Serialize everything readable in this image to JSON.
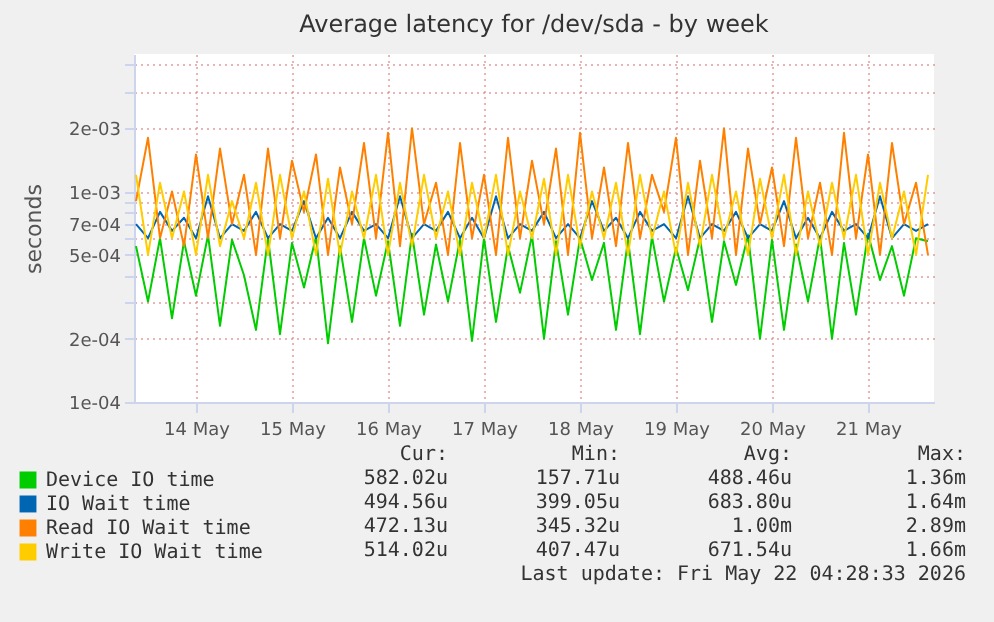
{
  "chart_data": {
    "type": "line",
    "title": "Average latency for /dev/sda - by week",
    "ylabel": "seconds",
    "log": "y",
    "ylim": [
      0.0001,
      0.0045
    ],
    "yticks": [
      {
        "value": 0.0001,
        "label": "1e-04"
      },
      {
        "value": 0.0002,
        "label": "2e-04"
      },
      {
        "value": 0.0003,
        "label": null
      },
      {
        "value": 0.0004,
        "label": null
      },
      {
        "value": 0.0005,
        "label": "5e-04"
      },
      {
        "value": 0.0006,
        "label": null
      },
      {
        "value": 0.0007,
        "label": "7e-04"
      },
      {
        "value": 0.0008,
        "label": null
      },
      {
        "value": 0.0009,
        "label": null
      },
      {
        "value": 0.001,
        "label": "1e-03"
      },
      {
        "value": 0.002,
        "label": "2e-03"
      },
      {
        "value": 0.003,
        "label": null
      },
      {
        "value": 0.004,
        "label": null
      }
    ],
    "xlim": [
      "2026-05-13T20:30",
      "2026-05-22T04:30"
    ],
    "xticks": [
      {
        "value": "2026-05-14T12:00",
        "label": "14 May"
      },
      {
        "value": "2026-05-15T12:00",
        "label": "15 May"
      },
      {
        "value": "2026-05-16T12:00",
        "label": "16 May"
      },
      {
        "value": "2026-05-17T12:00",
        "label": "17 May"
      },
      {
        "value": "2026-05-18T12:00",
        "label": "18 May"
      },
      {
        "value": "2026-05-19T12:00",
        "label": "19 May"
      },
      {
        "value": "2026-05-20T12:00",
        "label": "20 May"
      },
      {
        "value": "2026-05-21T12:00",
        "label": "21 May"
      }
    ],
    "grid": true,
    "legend": "bottom",
    "marker": "none",
    "line_style": "solid",
    "x": [
      "2026-05-13T21:00",
      "2026-05-14T00:00",
      "2026-05-14T03:00",
      "2026-05-14T06:00",
      "2026-05-14T09:00",
      "2026-05-14T12:00",
      "2026-05-14T15:00",
      "2026-05-14T18:00",
      "2026-05-14T21:00",
      "2026-05-15T00:00",
      "2026-05-15T03:00",
      "2026-05-15T06:00",
      "2026-05-15T09:00",
      "2026-05-15T12:00",
      "2026-05-15T15:00",
      "2026-05-15T18:00",
      "2026-05-15T21:00",
      "2026-05-16T00:00",
      "2026-05-16T03:00",
      "2026-05-16T06:00",
      "2026-05-16T09:00",
      "2026-05-16T12:00",
      "2026-05-16T15:00",
      "2026-05-16T18:00",
      "2026-05-16T21:00",
      "2026-05-17T00:00",
      "2026-05-17T03:00",
      "2026-05-17T06:00",
      "2026-05-17T09:00",
      "2026-05-17T12:00",
      "2026-05-17T15:00",
      "2026-05-17T18:00",
      "2026-05-17T21:00",
      "2026-05-18T00:00",
      "2026-05-18T03:00",
      "2026-05-18T06:00",
      "2026-05-18T09:00",
      "2026-05-18T12:00",
      "2026-05-18T15:00",
      "2026-05-18T18:00",
      "2026-05-18T21:00",
      "2026-05-19T00:00",
      "2026-05-19T03:00",
      "2026-05-19T06:00",
      "2026-05-19T09:00",
      "2026-05-19T12:00",
      "2026-05-19T15:00",
      "2026-05-19T18:00",
      "2026-05-19T21:00",
      "2026-05-20T00:00",
      "2026-05-20T03:00",
      "2026-05-20T06:00",
      "2026-05-20T09:00",
      "2026-05-20T12:00",
      "2026-05-20T15:00",
      "2026-05-20T18:00",
      "2026-05-20T21:00",
      "2026-05-21T00:00",
      "2026-05-21T03:00",
      "2026-05-21T06:00",
      "2026-05-21T09:00",
      "2026-05-21T12:00",
      "2026-05-21T15:00",
      "2026-05-21T18:00",
      "2026-05-21T21:00",
      "2026-05-22T00:00",
      "2026-05-22T03:00"
    ],
    "series": [
      {
        "name": "Device IO time",
        "color": "#00cc00",
        "values": [
          0.00055,
          0.0003,
          0.0006,
          0.00025,
          0.00058,
          0.00032,
          0.00062,
          0.00023,
          0.00059,
          0.0004,
          0.00022,
          0.0006,
          0.00021,
          0.00057,
          0.00035,
          0.00061,
          0.00019,
          0.00055,
          0.00024,
          0.0006,
          0.00032,
          0.00058,
          0.00023,
          0.00063,
          0.00026,
          0.00056,
          0.0003,
          0.00059,
          0.000195,
          0.0006,
          0.00024,
          0.00055,
          0.00033,
          0.00062,
          0.0002,
          0.00058,
          0.00026,
          0.0006,
          0.00038,
          0.00057,
          0.00022,
          0.00059,
          0.00021,
          0.00061,
          0.0003,
          0.00054,
          0.00034,
          0.0006,
          0.00024,
          0.00058,
          0.00036,
          0.00062,
          0.0002,
          0.00059,
          0.00022,
          0.00056,
          0.0003,
          0.00061,
          0.0002,
          0.00057,
          0.00026,
          0.00063,
          0.00038,
          0.00055,
          0.00032,
          0.0006,
          0.00058
        ]
      },
      {
        "name": "IO Wait time",
        "color": "#0066b3",
        "values": [
          0.0007,
          0.0006,
          0.0008,
          0.00065,
          0.00075,
          0.0006,
          0.00095,
          0.0006,
          0.0007,
          0.00065,
          0.0008,
          0.0006,
          0.0007,
          0.00065,
          0.0009,
          0.0006,
          0.00075,
          0.0006,
          0.0008,
          0.00065,
          0.0007,
          0.0006,
          0.00095,
          0.0006,
          0.0007,
          0.00065,
          0.0008,
          0.0006,
          0.00075,
          0.0006,
          0.00095,
          0.0006,
          0.0007,
          0.00065,
          0.0008,
          0.0006,
          0.0007,
          0.0006,
          0.0009,
          0.00065,
          0.00075,
          0.0006,
          0.0008,
          0.00065,
          0.0007,
          0.0006,
          0.00095,
          0.0006,
          0.0007,
          0.00065,
          0.0008,
          0.0006,
          0.0007,
          0.00065,
          0.0009,
          0.0006,
          0.00075,
          0.0006,
          0.0008,
          0.00065,
          0.0007,
          0.0006,
          0.00095,
          0.0006,
          0.0007,
          0.00065,
          0.0007
        ]
      },
      {
        "name": "Read IO Wait time",
        "color": "#ff8000",
        "values": [
          0.0009,
          0.0018,
          0.0006,
          0.001,
          0.00055,
          0.0015,
          0.0006,
          0.0016,
          0.0007,
          0.0012,
          0.0005,
          0.0016,
          0.0006,
          0.0014,
          0.0008,
          0.0015,
          0.0005,
          0.0013,
          0.0007,
          0.0017,
          0.0006,
          0.0019,
          0.00055,
          0.002,
          0.0007,
          0.0011,
          0.0005,
          0.0017,
          0.0006,
          0.0012,
          0.0005,
          0.0018,
          0.0006,
          0.0014,
          0.0007,
          0.0016,
          0.0005,
          0.0019,
          0.0006,
          0.0013,
          0.00055,
          0.0017,
          0.0006,
          0.0012,
          0.0008,
          0.0018,
          0.0005,
          0.0014,
          0.0006,
          0.002,
          0.0005,
          0.0016,
          0.0007,
          0.0013,
          0.00055,
          0.0018,
          0.0006,
          0.0011,
          0.0005,
          0.0019,
          0.0006,
          0.0015,
          0.0005,
          0.0017,
          0.0007,
          0.0011,
          0.0005
        ]
      },
      {
        "name": "Write IO Wait time",
        "color": "#ffcc00",
        "values": [
          0.0012,
          0.0005,
          0.0011,
          0.0006,
          0.001,
          0.0005,
          0.0012,
          0.00055,
          0.0009,
          0.0006,
          0.0011,
          0.0005,
          0.0012,
          0.0006,
          0.001,
          0.0005,
          0.00115,
          0.0005,
          0.001,
          0.0006,
          0.0012,
          0.0005,
          0.0011,
          0.00055,
          0.0012,
          0.0006,
          0.001,
          0.0005,
          0.0011,
          0.0006,
          0.0012,
          0.0005,
          0.001,
          0.0006,
          0.00115,
          0.0005,
          0.0012,
          0.00055,
          0.001,
          0.0006,
          0.0011,
          0.0005,
          0.0012,
          0.0006,
          0.001,
          0.0005,
          0.0011,
          0.00055,
          0.0012,
          0.0006,
          0.001,
          0.0005,
          0.00115,
          0.0006,
          0.0012,
          0.0005,
          0.001,
          0.00055,
          0.0011,
          0.0006,
          0.0012,
          0.0005,
          0.0011,
          0.0006,
          0.001,
          0.0005,
          0.0012
        ]
      }
    ],
    "annotations": [
      "Cur:",
      "Min:",
      "Avg:",
      "Max:",
      "582.02u",
      "157.71u",
      "488.46u",
      "1.36m",
      "494.56u",
      "399.05u",
      "683.80u",
      "1.64m",
      "472.13u",
      "345.32u",
      "1.00m",
      "2.89m",
      "514.02u",
      "407.47u",
      "671.54u",
      "1.66m",
      "Last update: Fri May 22 04:28:33 2026"
    ]
  }
}
